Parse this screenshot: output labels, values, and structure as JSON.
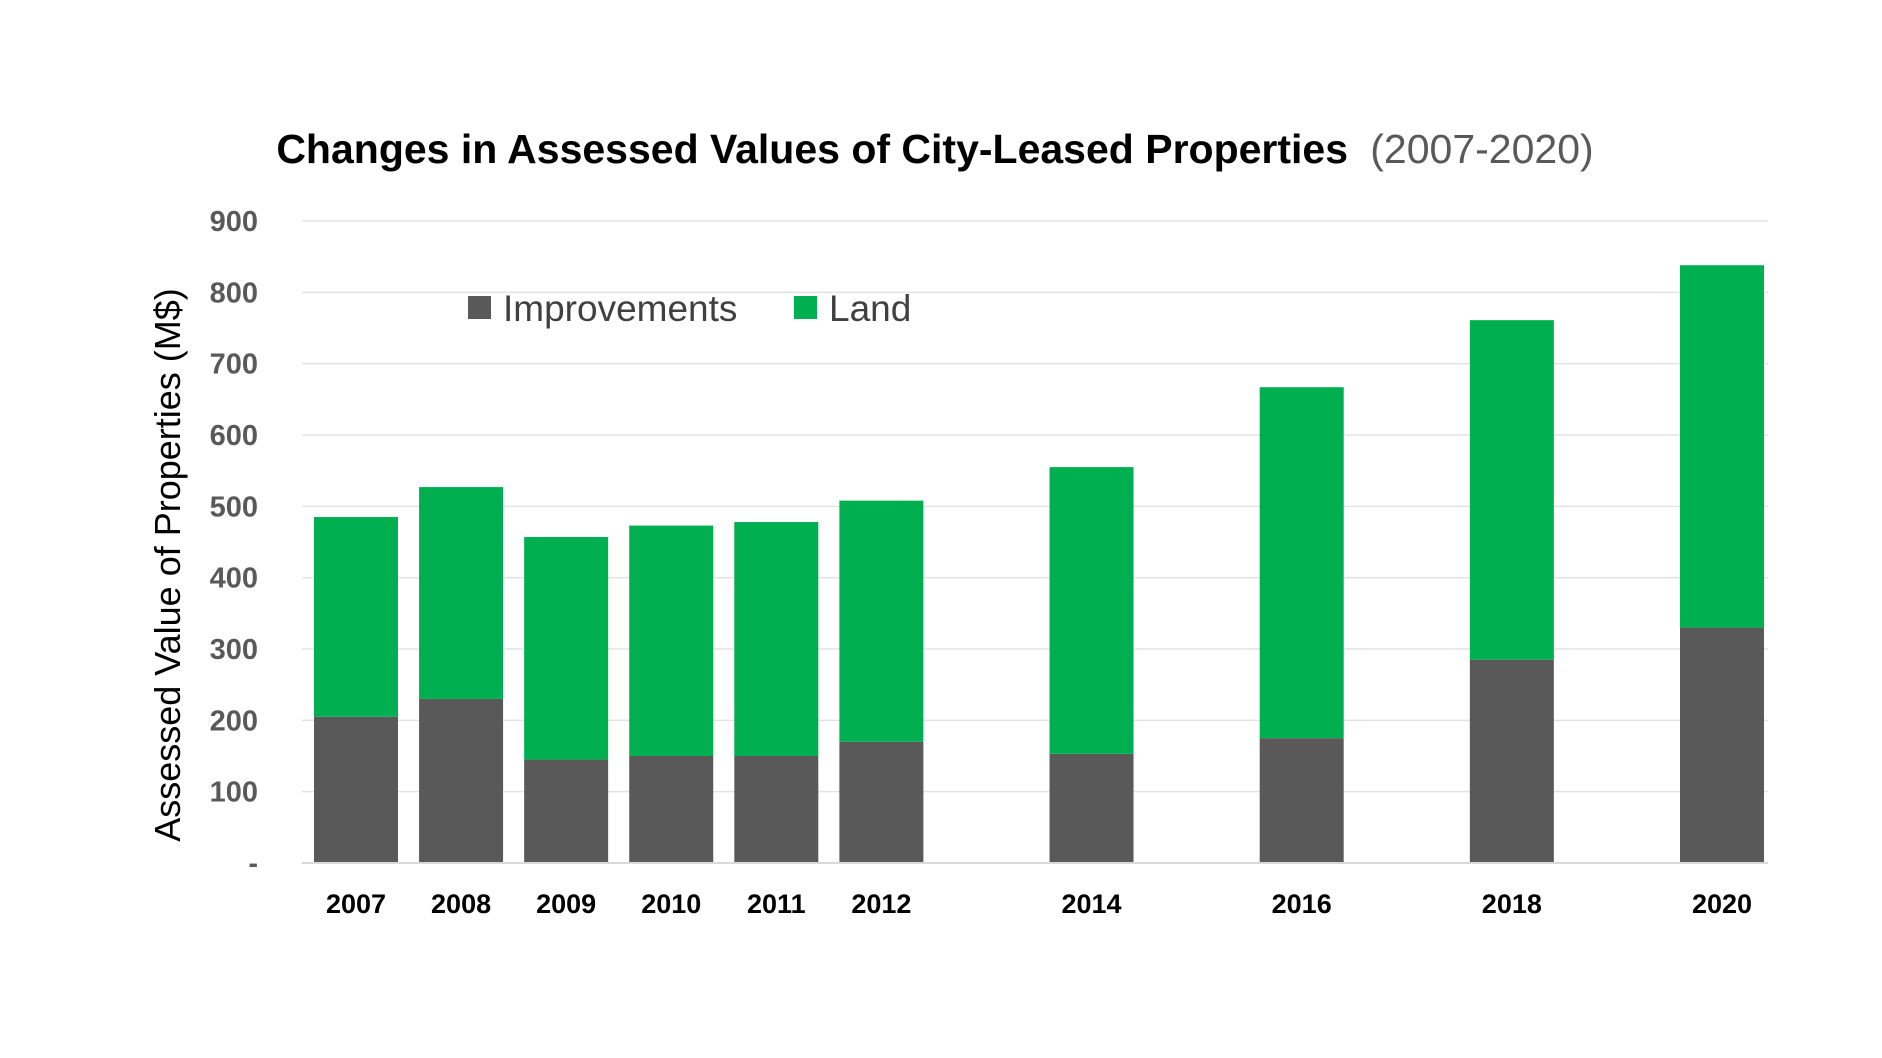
{
  "chart_data": {
    "type": "bar",
    "stacked": true,
    "title": "Changes in Assessed Values of City-Leased Properties",
    "subtitle": "(2007-2020)",
    "xlabel": "",
    "ylabel": "Assessed Value of Properties (M$)",
    "ylim": [
      0,
      900
    ],
    "yticks": [
      0,
      100,
      200,
      300,
      400,
      500,
      600,
      700,
      800,
      900
    ],
    "ytick_labels": [
      "-",
      "100",
      "200",
      "300",
      "400",
      "500",
      "600",
      "700",
      "800",
      "900"
    ],
    "grid": true,
    "legend_position": "top-left",
    "categories": [
      "2007",
      "2008",
      "2009",
      "2010",
      "2011",
      "2012",
      "2014",
      "2016",
      "2018",
      "2020"
    ],
    "series": [
      {
        "name": "Improvements",
        "color": "#595959",
        "values": [
          205,
          230,
          145,
          150,
          150,
          170,
          153,
          175,
          285,
          330
        ]
      },
      {
        "name": "Land",
        "color": "#00b050",
        "values": [
          280,
          297,
          312,
          323,
          328,
          338,
          402,
          492,
          476,
          508
        ]
      }
    ]
  }
}
